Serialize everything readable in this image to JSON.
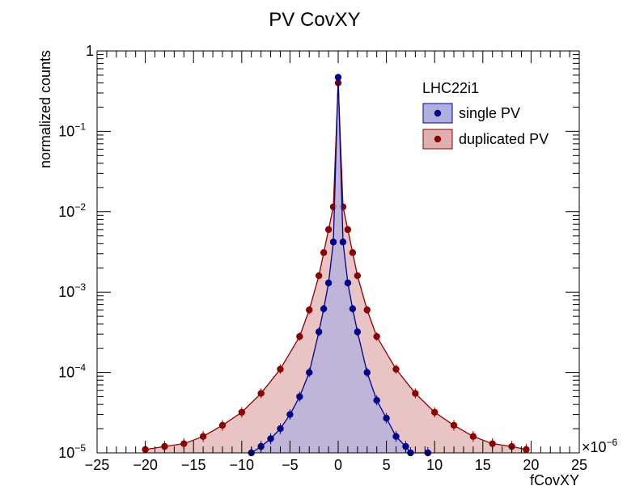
{
  "chart_data": {
    "type": "scatter",
    "title": "PV CovXY",
    "xlabel": "fCovXY",
    "ylabel": "normalized counts",
    "x_multiplier_label": "×10",
    "x_multiplier_exp": "−6",
    "xlim": [
      -25,
      25
    ],
    "ylim": [
      1e-05,
      1
    ],
    "y_scale": "log",
    "x_ticks": [
      -25,
      -20,
      -15,
      -10,
      -5,
      0,
      5,
      10,
      15,
      20,
      25
    ],
    "x_tick_labels": [
      "−25",
      "−20",
      "−15",
      "−10",
      "−5",
      "0",
      "5",
      "10",
      "15",
      "20",
      "25"
    ],
    "y_ticks": [
      {
        "value": 1,
        "base": "1",
        "exp": ""
      },
      {
        "value": 0.1,
        "base": "10",
        "exp": "−1"
      },
      {
        "value": 0.01,
        "base": "10",
        "exp": "−2"
      },
      {
        "value": 0.001,
        "base": "10",
        "exp": "−3"
      },
      {
        "value": 0.0001,
        "base": "10",
        "exp": "−4"
      },
      {
        "value": 1e-05,
        "base": "10",
        "exp": "−5"
      }
    ],
    "legend": {
      "header": "LHC22i1",
      "placement": "top-right"
    },
    "series": [
      {
        "name": "single PV",
        "color": "#00008b",
        "fill": "#b0b0e0",
        "x": [
          -9.0,
          -8.0,
          -7.0,
          -6.0,
          -5.0,
          -4.0,
          -3.0,
          -2.0,
          -1.5,
          -1.0,
          -0.5,
          0.0,
          0.5,
          1.0,
          1.5,
          2.0,
          3.0,
          4.0,
          5.0,
          6.0,
          7.0,
          7.5,
          9.3
        ],
        "y": [
          1e-05,
          1.2e-05,
          1.5e-05,
          2e-05,
          3e-05,
          5e-05,
          0.0001,
          0.00032,
          0.00062,
          0.0013,
          0.0042,
          0.47,
          0.0042,
          0.0013,
          0.00062,
          0.00032,
          0.0001,
          4.5e-05,
          2.7e-05,
          1.6e-05,
          1.2e-05,
          1e-05,
          1e-05
        ]
      },
      {
        "name": "duplicated PV",
        "color": "#8b0000",
        "fill": "#e0b0b0",
        "x": [
          -20.0,
          -18.0,
          -16.0,
          -14.0,
          -12.0,
          -10.0,
          -8.0,
          -6.0,
          -4.0,
          -3.0,
          -2.0,
          -1.5,
          -1.0,
          -0.5,
          0.0,
          0.5,
          1.0,
          1.5,
          2.0,
          3.0,
          4.0,
          6.0,
          8.0,
          10.0,
          12.0,
          14.0,
          16.0,
          18.0,
          19.5
        ],
        "y": [
          1.1e-05,
          1.2e-05,
          1.3e-05,
          1.6e-05,
          2.2e-05,
          3.2e-05,
          5.5e-05,
          0.00011,
          0.00028,
          0.0006,
          0.0016,
          0.0031,
          0.006,
          0.0115,
          0.4,
          0.0115,
          0.006,
          0.0031,
          0.0016,
          0.0006,
          0.00028,
          0.00011,
          5.5e-05,
          3.2e-05,
          2.2e-05,
          1.6e-05,
          1.3e-05,
          1.2e-05,
          1.1e-05
        ]
      }
    ]
  }
}
